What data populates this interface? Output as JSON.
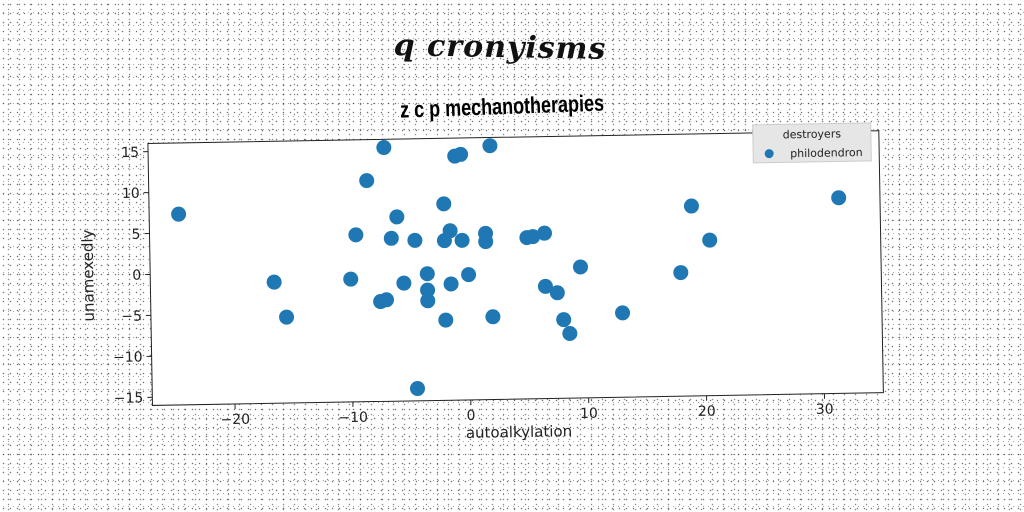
{
  "figure": {
    "suptitle": "q cronyisms"
  },
  "chart_data": {
    "type": "scatter",
    "title": "z c p mechanotherapies",
    "xlabel": "autoalkylation",
    "ylabel": "unamexedly",
    "xlim": [
      -27,
      35
    ],
    "ylim": [
      -16,
      16
    ],
    "xticks": [
      -20,
      -10,
      0,
      10,
      20,
      30
    ],
    "yticks": [
      15,
      10,
      5,
      0,
      -5,
      -10,
      -15
    ],
    "xtick_labels": [
      "−20",
      "−10",
      "0",
      "10",
      "20",
      "30"
    ],
    "ytick_labels": [
      "15",
      "10",
      "5",
      "0",
      "−5",
      "−10",
      "−15"
    ],
    "grid": false,
    "legend": {
      "title": "destroyers",
      "placement": "top-right"
    },
    "series": [
      {
        "name": "philodendron",
        "color": "#1f77b4",
        "points": [
          {
            "x": -24.5,
            "y": 7.3
          },
          {
            "x": -16.5,
            "y": -1.2
          },
          {
            "x": -15.5,
            "y": -5.5
          },
          {
            "x": -10.0,
            "y": -1.0
          },
          {
            "x": -9.5,
            "y": 4.4
          },
          {
            "x": -8.5,
            "y": 11.0
          },
          {
            "x": -7.5,
            "y": -3.8
          },
          {
            "x": -7.0,
            "y": -3.6
          },
          {
            "x": -7.0,
            "y": 15.0
          },
          {
            "x": -6.5,
            "y": 3.9
          },
          {
            "x": -6.0,
            "y": 6.5
          },
          {
            "x": -5.5,
            "y": -1.6
          },
          {
            "x": -4.5,
            "y": 3.6
          },
          {
            "x": -4.5,
            "y": -14.5
          },
          {
            "x": -3.5,
            "y": -0.5
          },
          {
            "x": -3.5,
            "y": -2.5
          },
          {
            "x": -3.5,
            "y": -3.8
          },
          {
            "x": -2.0,
            "y": -6.2
          },
          {
            "x": -2.0,
            "y": 8.0
          },
          {
            "x": -2.0,
            "y": 3.5
          },
          {
            "x": -1.5,
            "y": 4.7
          },
          {
            "x": -1.5,
            "y": -1.8
          },
          {
            "x": -1.0,
            "y": 13.8
          },
          {
            "x": -0.5,
            "y": 14.0
          },
          {
            "x": -0.5,
            "y": 3.5
          },
          {
            "x": 0.0,
            "y": -0.7
          },
          {
            "x": 1.5,
            "y": 4.3
          },
          {
            "x": 1.5,
            "y": 3.3
          },
          {
            "x": 2.0,
            "y": 15.0
          },
          {
            "x": 2.0,
            "y": -5.9
          },
          {
            "x": 5.0,
            "y": 3.7
          },
          {
            "x": 5.5,
            "y": 3.8
          },
          {
            "x": 6.5,
            "y": 4.2
          },
          {
            "x": 6.5,
            "y": -2.3
          },
          {
            "x": 7.5,
            "y": -3.1
          },
          {
            "x": 8.0,
            "y": -6.4
          },
          {
            "x": 8.5,
            "y": -8.1
          },
          {
            "x": 9.5,
            "y": 0.0
          },
          {
            "x": 13.0,
            "y": -5.7
          },
          {
            "x": 18.0,
            "y": -0.9
          },
          {
            "x": 19.0,
            "y": 7.2
          },
          {
            "x": 20.5,
            "y": 3.0
          },
          {
            "x": 31.5,
            "y": 7.9
          }
        ]
      }
    ]
  }
}
